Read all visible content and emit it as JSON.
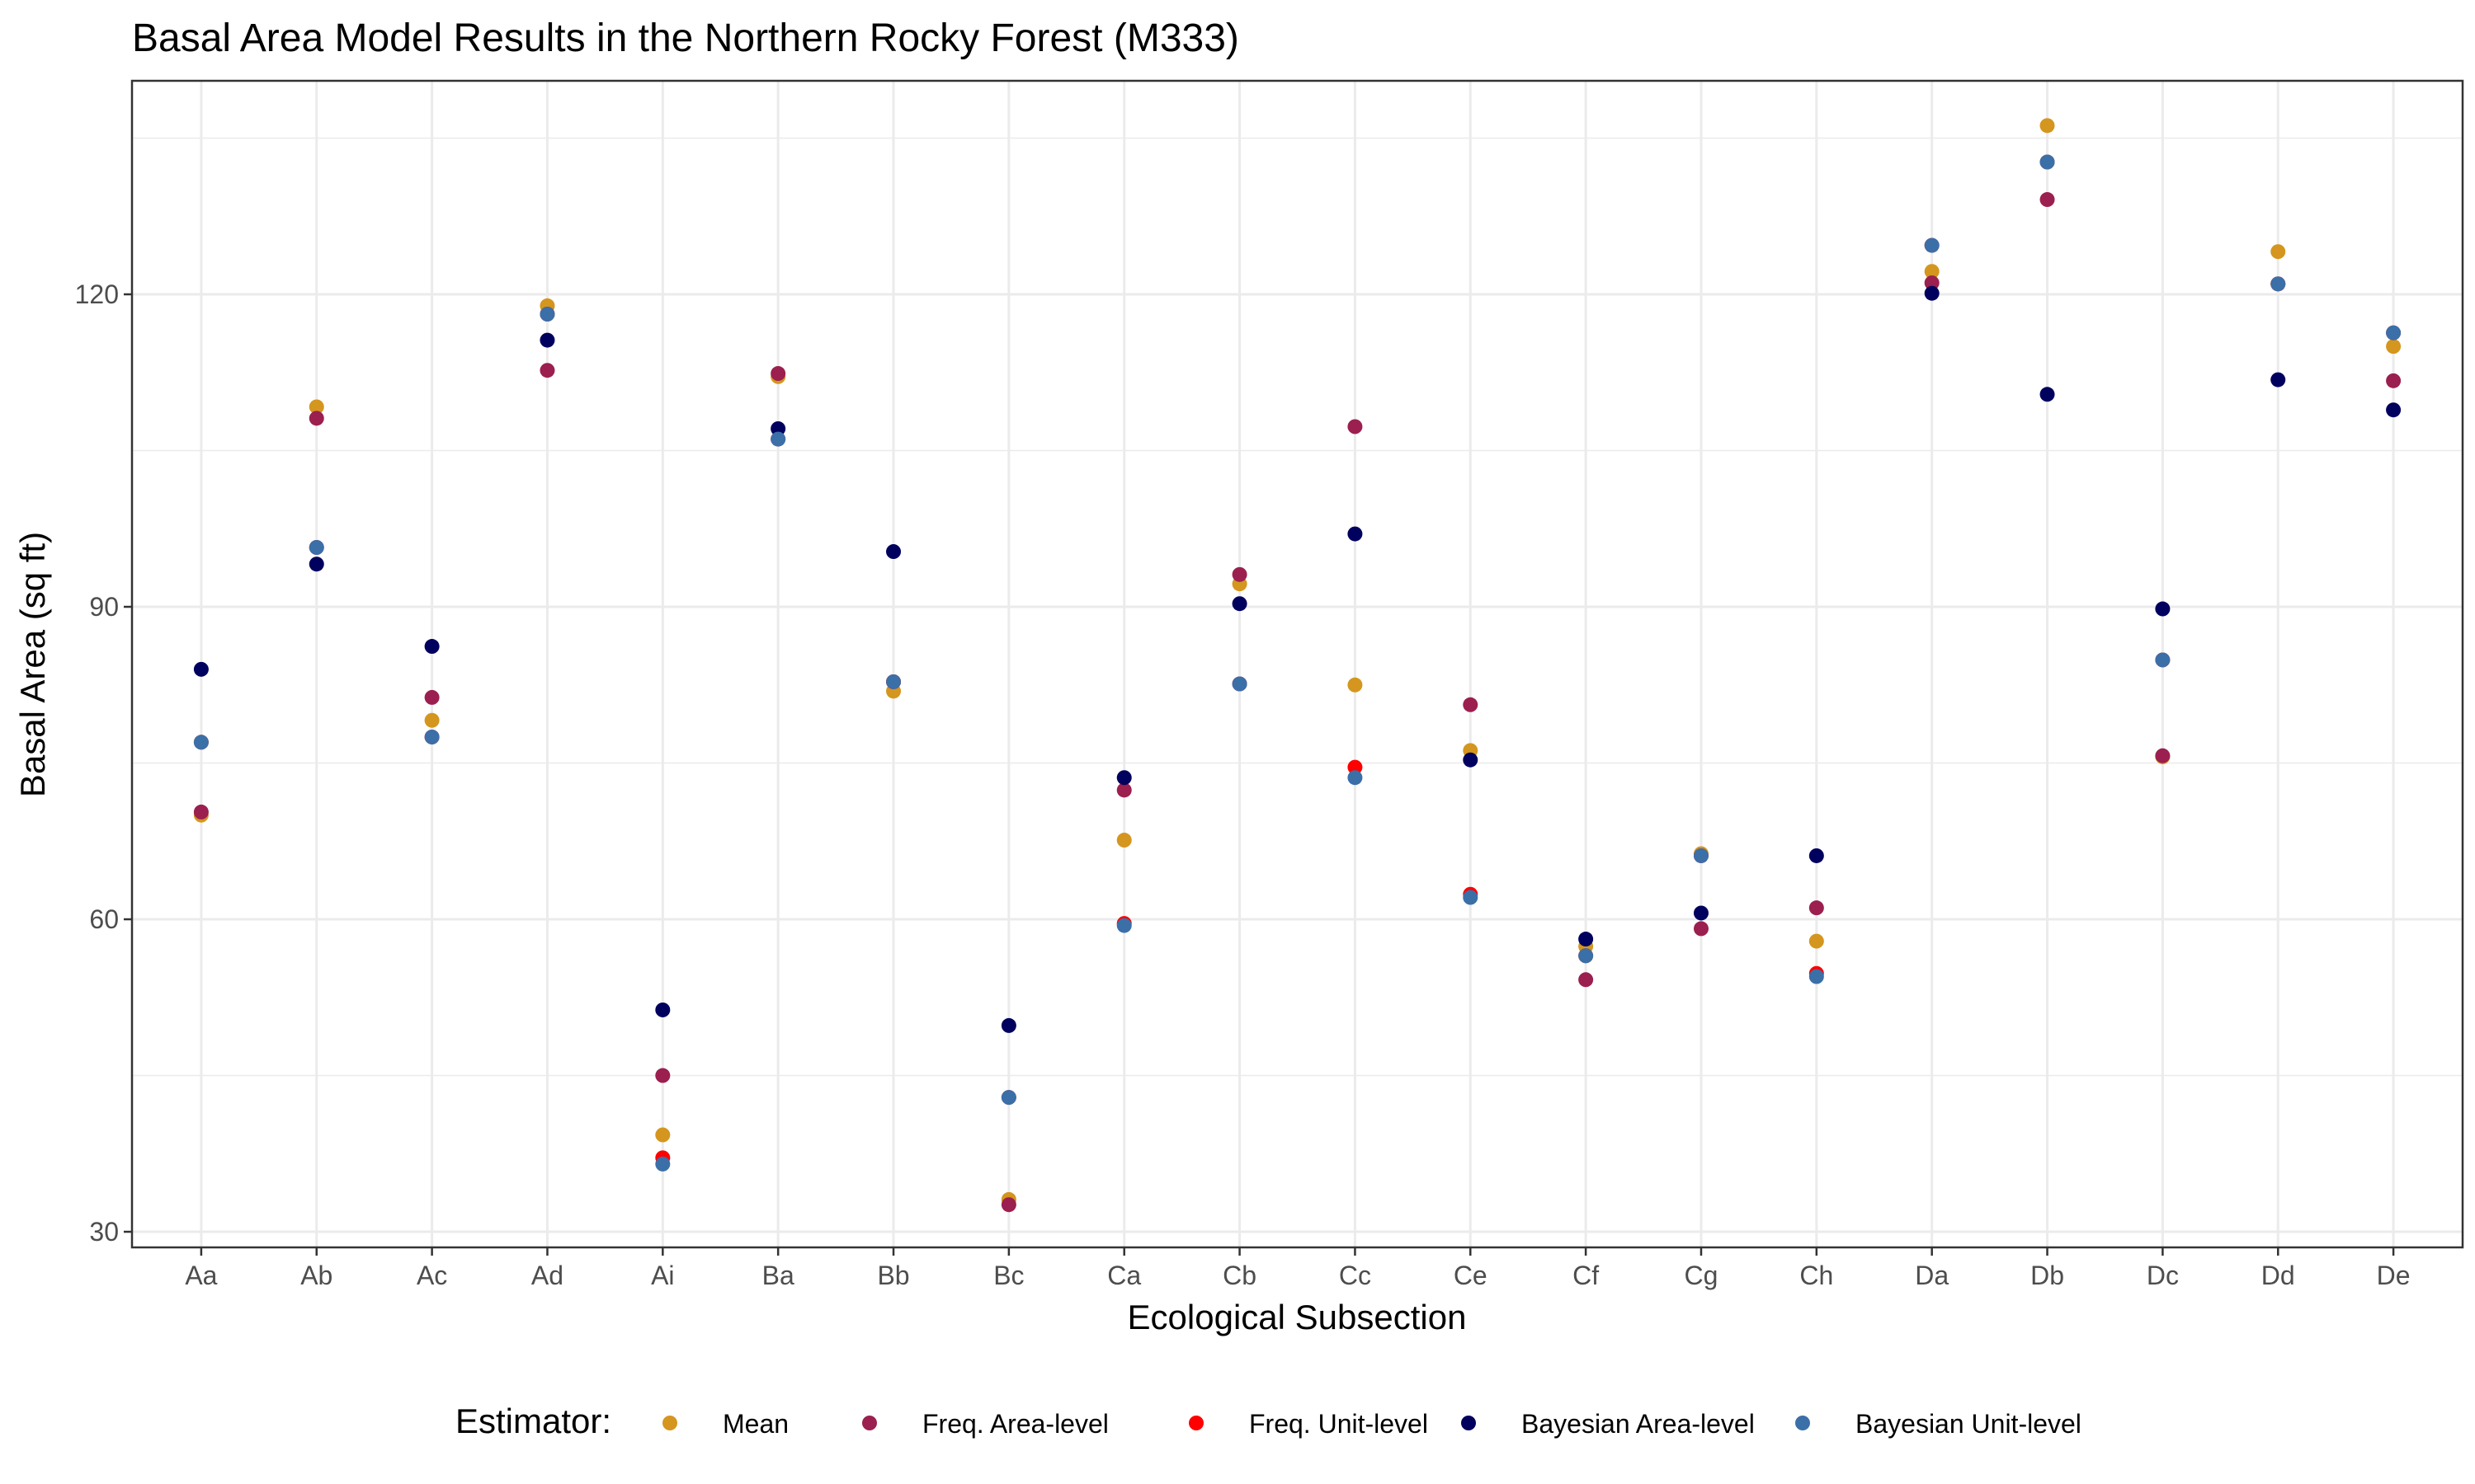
{
  "chart_data": {
    "type": "scatter",
    "title": "Basal Area Model Results in the Northern Rocky Forest (M333)",
    "xlabel": "Ecological Subsection",
    "ylabel": "Basal Area (sq ft)",
    "categories": [
      "Aa",
      "Ab",
      "Ac",
      "Ad",
      "Ai",
      "Ba",
      "Bb",
      "Bc",
      "Ca",
      "Cb",
      "Cc",
      "Ce",
      "Cf",
      "Cg",
      "Ch",
      "Da",
      "Db",
      "Dc",
      "Dd",
      "De"
    ],
    "yticks": [
      30,
      60,
      90,
      120
    ],
    "ylim": [
      28.5,
      140.5
    ],
    "grid": true,
    "legend": {
      "title": "Estimator:",
      "position": "bottom"
    },
    "series": [
      {
        "name": "Mean",
        "color": "#D4961E",
        "values": [
          70,
          109.2,
          79.1,
          118.9,
          39.3,
          112.1,
          81.9,
          33.1,
          67.6,
          92.2,
          82.5,
          76.2,
          57.4,
          66.3,
          57.9,
          122.2,
          136.2,
          75.6,
          124.1,
          115.0
        ]
      },
      {
        "name": "Freq. Area-level",
        "color": "#9B1F4F",
        "values": [
          70.3,
          108.1,
          81.3,
          112.7,
          45.0,
          112.4,
          82.8,
          32.6,
          72.4,
          93.1,
          107.3,
          80.6,
          54.2,
          59.1,
          61.1,
          121.1,
          129.1,
          75.7,
          121.0,
          111.7
        ]
      },
      {
        "name": "Freq. Unit-level",
        "color": "#FF0000",
        "values": [
          77.0,
          95.7,
          77.5,
          118.1,
          37.1,
          106.1,
          82.8,
          42.9,
          59.6,
          82.6,
          74.6,
          62.4,
          56.5,
          66.1,
          54.8,
          124.7,
          132.7,
          84.9,
          121.0,
          116.3
        ]
      },
      {
        "name": "Bayesian Area-level",
        "color": "#00005E",
        "values": [
          84.0,
          94.1,
          86.2,
          115.6,
          51.3,
          107.1,
          95.3,
          49.8,
          73.6,
          90.3,
          97.0,
          75.3,
          58.1,
          60.6,
          66.1,
          120.1,
          110.4,
          89.8,
          111.8,
          108.9
        ]
      },
      {
        "name": "Bayesian Unit-level",
        "color": "#3B6FA8",
        "values": [
          77.0,
          95.7,
          77.5,
          118.1,
          36.5,
          106.1,
          82.8,
          42.9,
          59.4,
          82.6,
          73.6,
          62.1,
          56.5,
          66.1,
          54.5,
          124.7,
          132.7,
          84.9,
          121.0,
          116.3
        ]
      }
    ]
  }
}
